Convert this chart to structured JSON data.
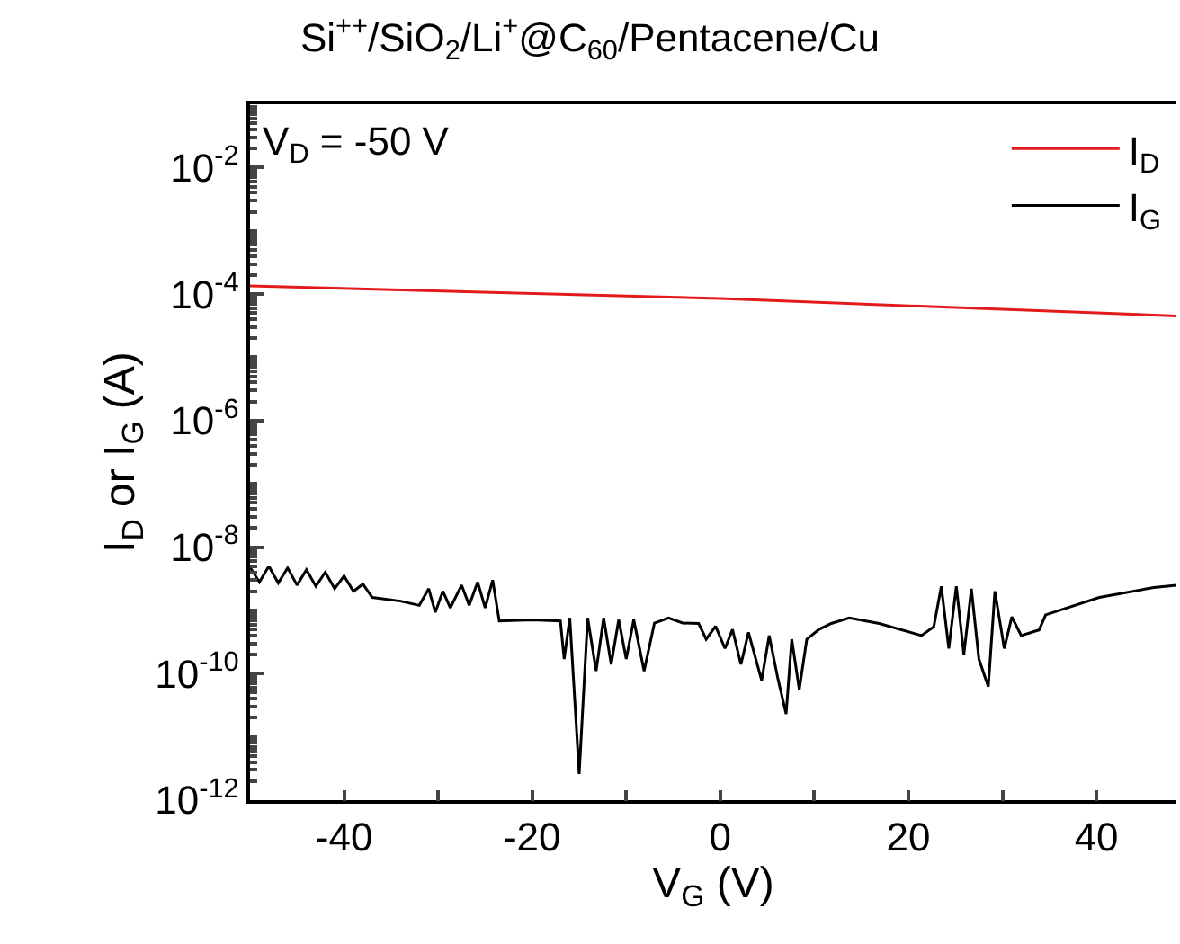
{
  "chart_data": {
    "type": "line",
    "title": "Si$^{++}$/SiO$_{2}$/Li$^{+}$@C$_{60}$/Pentacene/Cu",
    "xlabel": "V$_{G}$ (V)",
    "ylabel": "I$_{D}$ or I$_{G}$ (A)",
    "annotations": [
      "V$_{D}$ = -50 V"
    ],
    "log": "y",
    "legend": "top right",
    "line_style": "solid",
    "marker": "none",
    "xlim": [
      -50,
      48.5
    ],
    "xticks": [
      -40,
      {
        "value": -30,
        "label": null
      },
      -20,
      {
        "value": -10,
        "label": null
      },
      0,
      {
        "value": 10,
        "label": null
      },
      20,
      {
        "value": 30,
        "label": null
      },
      40
    ],
    "ylim": [
      1e-12,
      0.1
    ],
    "yticks": [
      {
        "value": 1e-12,
        "label": "10$^{-12}$"
      },
      {
        "value": 1e-10,
        "label": "10$^{-10}$"
      },
      {
        "value": 1e-08,
        "label": "10$^{-8}$"
      },
      {
        "value": 1e-06,
        "label": "10$^{-6}$"
      },
      {
        "value": 0.0001,
        "label": "10$^{-4}$"
      },
      {
        "value": 0.01,
        "label": "10$^{-2}$"
      }
    ],
    "series": [
      {
        "name": "I$_{D}$",
        "color": "#e31a1c",
        "x": [
          -50,
          0,
          48.5
        ],
        "values": [
          0.000135,
          8.5e-05,
          4.5e-05
        ]
      },
      {
        "name": "I$_{G}$",
        "color": "#000000",
        "x": [
          -50,
          -49,
          -48,
          -47,
          -46,
          -45,
          -44,
          -43,
          -42,
          -41,
          -40,
          -39,
          -38,
          -37,
          -34,
          -32,
          -31,
          -30.3,
          -29.5,
          -28.7,
          -27.5,
          -26.7,
          -25.8,
          -25,
          -24.2,
          -23.5,
          -20,
          -17,
          -16.6,
          -16.0,
          -15.0,
          -14.1,
          -13.2,
          -12.4,
          -11.6,
          -10.8,
          -10.0,
          -9.2,
          -8.1,
          -7,
          -5.5,
          -4,
          -2.3,
          -1.5,
          -0.5,
          0.5,
          1.3,
          2.2,
          3.0,
          4.4,
          5.2,
          6.1,
          7.0,
          7.6,
          8.4,
          9.2,
          10.5,
          11.8,
          13.7,
          16.9,
          21.4,
          22.7,
          23.5,
          24.3,
          25.1,
          25.9,
          26.7,
          27.5,
          28.5,
          29.2,
          30.2,
          31,
          32,
          33.9,
          34.6,
          40.3,
          46.1,
          48.5
        ],
        "values": [
          4.8e-09,
          2.8e-09,
          5e-09,
          2.7e-09,
          4.7e-09,
          2.5e-09,
          4.4e-09,
          2.4e-09,
          4e-09,
          2.2e-09,
          3.5e-09,
          2e-09,
          2.6e-09,
          1.6e-09,
          1.4e-09,
          1.2e-09,
          2.2e-09,
          9.3e-10,
          2e-09,
          1.1e-09,
          2.5e-09,
          1.2e-09,
          2.8e-09,
          1.1e-09,
          3e-09,
          6.8e-10,
          7.1e-10,
          6.8e-10,
          1.7e-10,
          7.6e-10,
          2.6e-12,
          7.6e-10,
          1.1e-10,
          7.6e-10,
          1.4e-10,
          7.1e-10,
          1.7e-10,
          7.1e-10,
          1.1e-10,
          6.3e-10,
          7.6e-10,
          6.3e-10,
          6.2e-10,
          3.5e-10,
          5.6e-10,
          2.5e-10,
          5e-10,
          1.4e-10,
          4.5e-10,
          7.8e-11,
          4e-10,
          8.7e-11,
          2.3e-11,
          3.5e-10,
          5.6e-11,
          3.5e-10,
          5e-10,
          6.2e-10,
          7.6e-10,
          6.2e-10,
          4e-10,
          5.5e-10,
          2.4e-09,
          2.5e-10,
          2.4e-09,
          2e-10,
          2.2e-09,
          1.7e-10,
          6.2e-11,
          2e-09,
          2.5e-10,
          7.9e-10,
          4e-10,
          4.9e-10,
          8.5e-10,
          1.6e-09,
          2.3e-09,
          2.5e-09
        ]
      }
    ]
  }
}
